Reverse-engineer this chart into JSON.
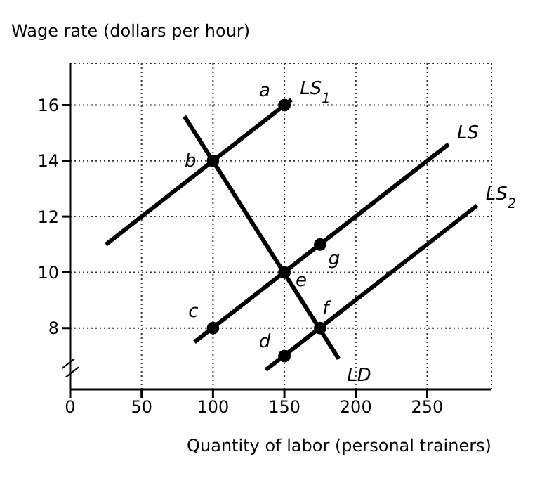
{
  "chart_data": {
    "type": "line",
    "ylabel": "Wage rate (dollars per hour)",
    "xlabel": "Quantity of labor (personal trainers)",
    "xlim": [
      0,
      295
    ],
    "xticks": [
      0,
      50,
      100,
      150,
      200,
      250
    ],
    "ylim": [
      5.8,
      17.5
    ],
    "yticks": [
      8,
      10,
      12,
      14,
      16
    ],
    "grid": true,
    "legend": false,
    "marker": "none",
    "line_style": "solid",
    "series": [
      {
        "name": "LS$_{1}$",
        "color": "#000000",
        "x": [
          25,
          155
        ],
        "values": [
          11,
          16.2
        ]
      },
      {
        "name": "LS",
        "color": "#000000",
        "x": [
          87,
          265
        ],
        "values": [
          7.5,
          14.6
        ]
      },
      {
        "name": "LS$_{2}$",
        "color": "#000000",
        "x": [
          137,
          285
        ],
        "values": [
          6.5,
          12.4
        ]
      },
      {
        "name": "LD",
        "color": "#000000",
        "x": [
          80,
          188
        ],
        "values": [
          15.6,
          6.9
        ]
      },
      {
        "type": "scatter",
        "marker": "circle",
        "color": "#000000",
        "x": [
          150,
          100,
          100,
          150,
          150,
          175,
          175
        ],
        "values": [
          16,
          14,
          8,
          7,
          10,
          8,
          11
        ]
      }
    ],
    "annotations": [
      {
        "text": "a",
        "x": 150,
        "y": 16
      },
      {
        "text": "b",
        "x": 100,
        "y": 14
      },
      {
        "text": "c",
        "x": 100,
        "y": 8
      },
      {
        "text": "d",
        "x": 150,
        "y": 7
      },
      {
        "text": "e",
        "x": 150,
        "y": 10
      },
      {
        "text": "f",
        "x": 175,
        "y": 8
      },
      {
        "text": "g",
        "x": 175,
        "y": 11
      }
    ]
  }
}
